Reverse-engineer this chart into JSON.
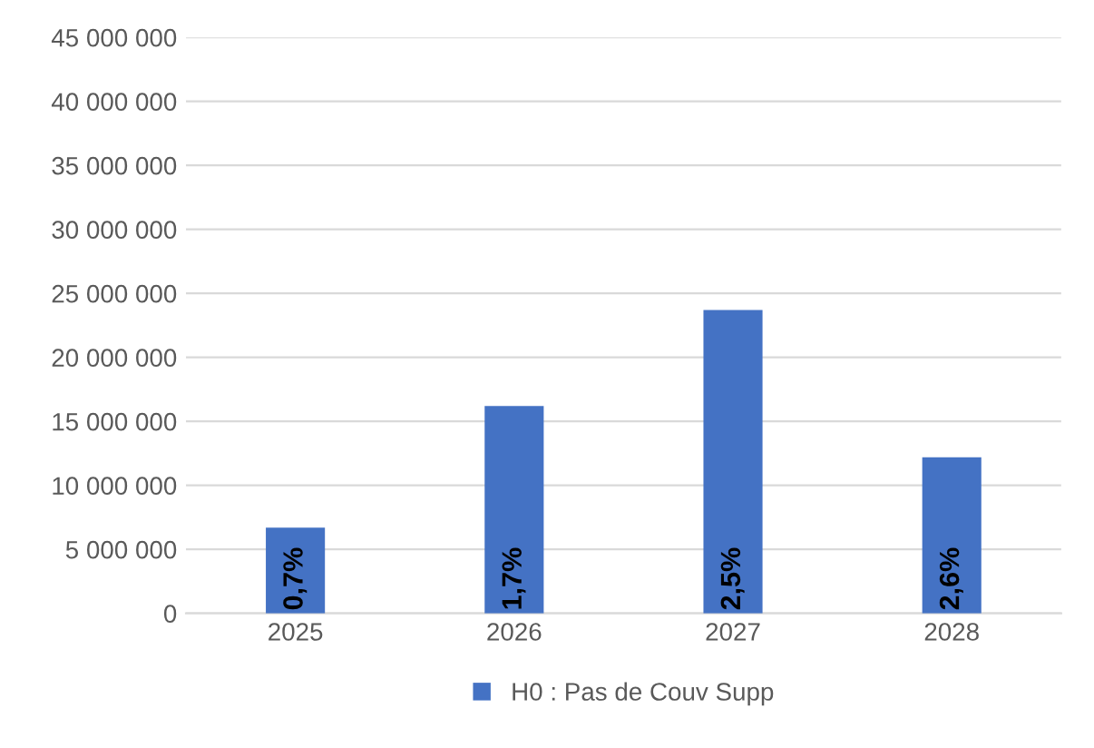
{
  "chart_data": {
    "type": "bar",
    "categories": [
      "2025",
      "2026",
      "2027",
      "2028"
    ],
    "series": [
      {
        "name": "H0 : Pas de Couv Supp",
        "color": "#4472c4",
        "values": [
          6700000,
          16200000,
          23700000,
          12200000
        ]
      }
    ],
    "annotations": [
      "0,7%",
      "1,7%",
      "2,5%",
      "2,6%"
    ],
    "ylim": [
      0,
      45000000
    ],
    "yticks": [
      0,
      {
        "value": 5000000,
        "label": "5 000 000"
      },
      {
        "value": 10000000,
        "label": "10 000 000"
      },
      {
        "value": 15000000,
        "label": "15 000 000"
      },
      {
        "value": 20000000,
        "label": "20 000 000"
      },
      {
        "value": 25000000,
        "label": "25 000 000"
      },
      {
        "value": 30000000,
        "label": "30 000 000"
      },
      {
        "value": 35000000,
        "label": "35 000 000"
      },
      {
        "value": 40000000,
        "label": "40 000 000"
      },
      {
        "value": 45000000,
        "label": "45 000 000"
      }
    ],
    "grid": "y",
    "legend": "bottom"
  }
}
